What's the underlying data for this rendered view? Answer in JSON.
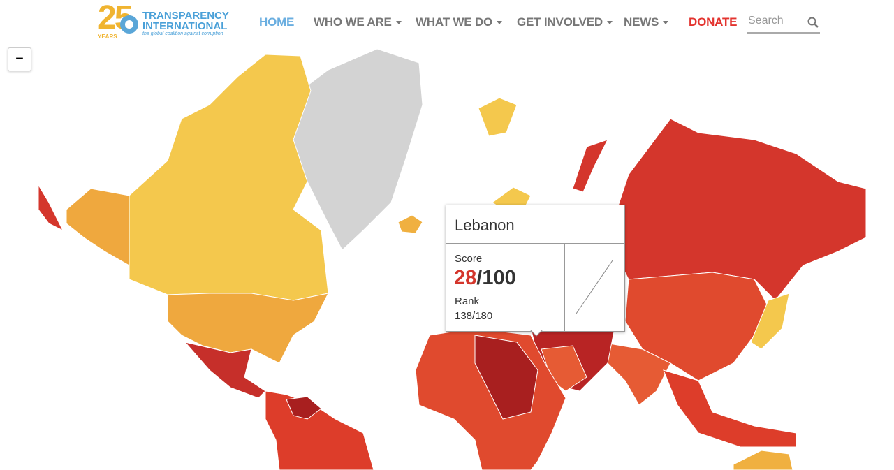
{
  "logo": {
    "number": "25",
    "years": "YEARS",
    "name_line1": "TRANSPARENCY",
    "name_line2": "INTERNATIONAL",
    "tagline": "the global coalition against corruption"
  },
  "nav": {
    "items": [
      "HOME",
      "WHO WE ARE",
      "WHAT WE DO",
      "GET INVOLVED",
      "NEWS"
    ],
    "donate": "DONATE",
    "search_placeholder": "Search"
  },
  "map": {
    "zoom_out": "−"
  },
  "tooltip": {
    "country": "Lebanon",
    "score_label": "Score",
    "score": 28,
    "score_max": "/100",
    "rank_label": "Rank",
    "rank": "138/180"
  }
}
